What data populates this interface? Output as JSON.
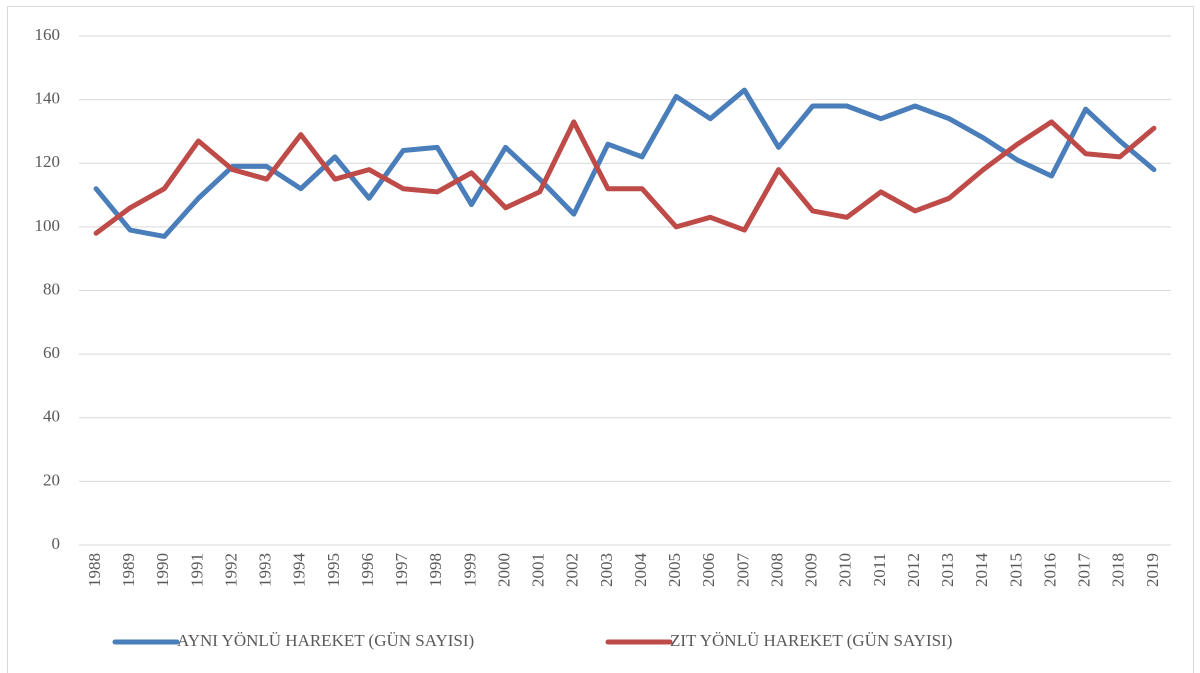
{
  "chart_data": {
    "type": "line",
    "categories": [
      "1988",
      "1989",
      "1990",
      "1991",
      "1992",
      "1993",
      "1994",
      "1995",
      "1996",
      "1997",
      "1998",
      "1999",
      "2000",
      "2001",
      "2002",
      "2003",
      "2004",
      "2005",
      "2006",
      "2007",
      "2008",
      "2009",
      "2010",
      "2011",
      "2012",
      "2013",
      "2014",
      "2015",
      "2016",
      "2017",
      "2018",
      "2019"
    ],
    "series": [
      {
        "name": "AYNI YÖNLÜ HAREKET (GÜN SAYISI)",
        "color": "#4a7ebb",
        "values": [
          112,
          99,
          97,
          109,
          119,
          119,
          112,
          122,
          109,
          124,
          125,
          107,
          125,
          115,
          104,
          126,
          122,
          141,
          134,
          143,
          125,
          138,
          138,
          134,
          138,
          134,
          128,
          121,
          116,
          137,
          127,
          118
        ]
      },
      {
        "name": "ZIT YÖNLÜ HAREKET (GÜN SAYISI)",
        "color": "#be4b48",
        "values": [
          98,
          106,
          112,
          127,
          118,
          115,
          129,
          115,
          118,
          112,
          111,
          117,
          106,
          111,
          133,
          112,
          112,
          100,
          103,
          99,
          118,
          105,
          103,
          111,
          105,
          109,
          118,
          126,
          133,
          123,
          122,
          131
        ]
      }
    ],
    "ylim": [
      0,
      160
    ],
    "yticks": [
      0,
      20,
      40,
      60,
      80,
      100,
      120,
      140,
      160
    ],
    "grid": true,
    "legend": "bottom"
  }
}
